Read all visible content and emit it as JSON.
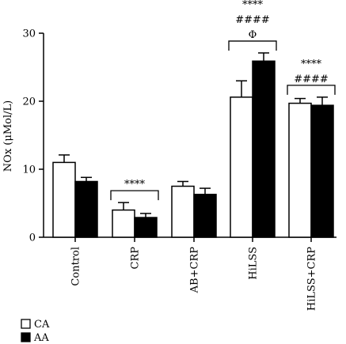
{
  "chart_data": {
    "type": "bar",
    "categories": [
      "Control",
      "CRP",
      "AB+CRP",
      "HiLSS",
      "HiLSS+CRP"
    ],
    "series": [
      {
        "name": "CA",
        "values": [
          11.0,
          4.0,
          7.5,
          20.6,
          19.7
        ],
        "errors": [
          1.1,
          1.1,
          0.7,
          2.4,
          0.7
        ],
        "color": "#ffffff"
      },
      {
        "name": "AA",
        "values": [
          8.2,
          2.9,
          6.3,
          25.9,
          19.4
        ],
        "errors": [
          0.6,
          0.6,
          0.9,
          1.2,
          1.2
        ],
        "color": "#000000"
      }
    ],
    "ylabel": "NOx (μMol/L)",
    "ylim": [
      0,
      30
    ],
    "yticks": [
      "0",
      "10",
      "20",
      "30"
    ],
    "significance": [
      {
        "category": "CRP",
        "lines": [
          "****"
        ]
      },
      {
        "category": "HiLSS",
        "lines": [
          "****",
          "####",
          "Φ"
        ]
      },
      {
        "category": "HiLSS+CRP",
        "lines": [
          "****",
          "####"
        ]
      }
    ],
    "legend_position": "bottom-left",
    "grid": false
  }
}
